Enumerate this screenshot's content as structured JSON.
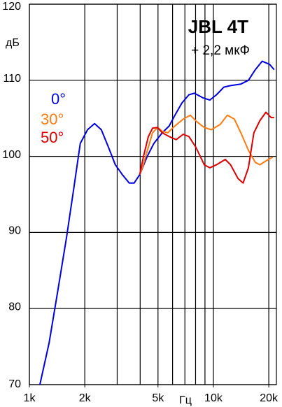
{
  "chart_data": {
    "type": "line",
    "title": "JBL 4T",
    "subtitle": "+ 2,2 мкФ",
    "y_label": "дБ",
    "x_label": "Гц",
    "x_scale": "log",
    "grid": true,
    "xlim": [
      1000,
      22000
    ],
    "ylim": [
      70,
      120
    ],
    "xticks": [
      {
        "value": 1000,
        "label": "1k"
      },
      {
        "value": 2000,
        "label": "2k"
      },
      {
        "value": 5000,
        "label": "5k"
      },
      {
        "value": 10000,
        "label": "10k"
      },
      {
        "value": 20000,
        "label": "20k"
      }
    ],
    "xgrid": [
      1000,
      2000,
      3000,
      4000,
      5000,
      6000,
      7000,
      8000,
      9000,
      10000,
      20000
    ],
    "yticks": [
      70,
      80,
      90,
      100,
      110,
      120
    ],
    "series": [
      {
        "name": "0°",
        "color": "#0000e0",
        "x": [
          1140,
          1280,
          1420,
          1590,
          1740,
          1890,
          2070,
          2260,
          2460,
          2690,
          2930,
          3200,
          3490,
          3710,
          3980,
          4350,
          4750,
          5270,
          5750,
          6180,
          6740,
          7360,
          7880,
          8760,
          9560,
          10400,
          11400,
          12400,
          14100,
          15500,
          16900,
          18400,
          20200,
          21400
        ],
        "values": [
          70,
          75.5,
          82,
          89.3,
          95.7,
          101.7,
          103.5,
          104.3,
          103.5,
          101.2,
          98.9,
          97.6,
          96.5,
          96.5,
          97.6,
          99.9,
          101.7,
          103.1,
          104,
          105.4,
          107,
          108.1,
          108.3,
          107.7,
          107.4,
          108.1,
          109.1,
          109.3,
          109.5,
          110,
          111.4,
          112.5,
          112.1,
          111.4
        ]
      },
      {
        "name": "30°",
        "color": "#ff7a10",
        "x": [
          3980,
          4160,
          4430,
          4670,
          4970,
          5270,
          5650,
          6180,
          6860,
          7490,
          8170,
          8920,
          9740,
          10900,
          11900,
          13000,
          14100,
          15500,
          16900,
          17900,
          19300,
          21000
        ],
        "values": [
          97.6,
          98.9,
          101.2,
          103.1,
          103.8,
          103.3,
          103.1,
          104,
          104.9,
          105.4,
          104.5,
          103.8,
          103.5,
          104.2,
          105.4,
          104.9,
          103.1,
          100.8,
          99.2,
          98.9,
          99.4,
          99.9
        ]
      },
      {
        "name": "50°",
        "color": "#e00000",
        "x": [
          3980,
          4160,
          4430,
          4670,
          4970,
          5270,
          5750,
          6280,
          6860,
          7360,
          8030,
          8920,
          9560,
          10400,
          11600,
          12400,
          13600,
          14500,
          15500,
          16600,
          17900,
          19300,
          20600,
          21400
        ],
        "values": [
          97.6,
          99.9,
          102.6,
          103.7,
          103.8,
          103.1,
          102.6,
          102.2,
          102.9,
          102.6,
          101.2,
          98.9,
          98.5,
          98.9,
          99.6,
          98.9,
          97.1,
          96.5,
          98.5,
          103.1,
          104.7,
          105.8,
          105.1,
          105.1
        ]
      }
    ]
  }
}
